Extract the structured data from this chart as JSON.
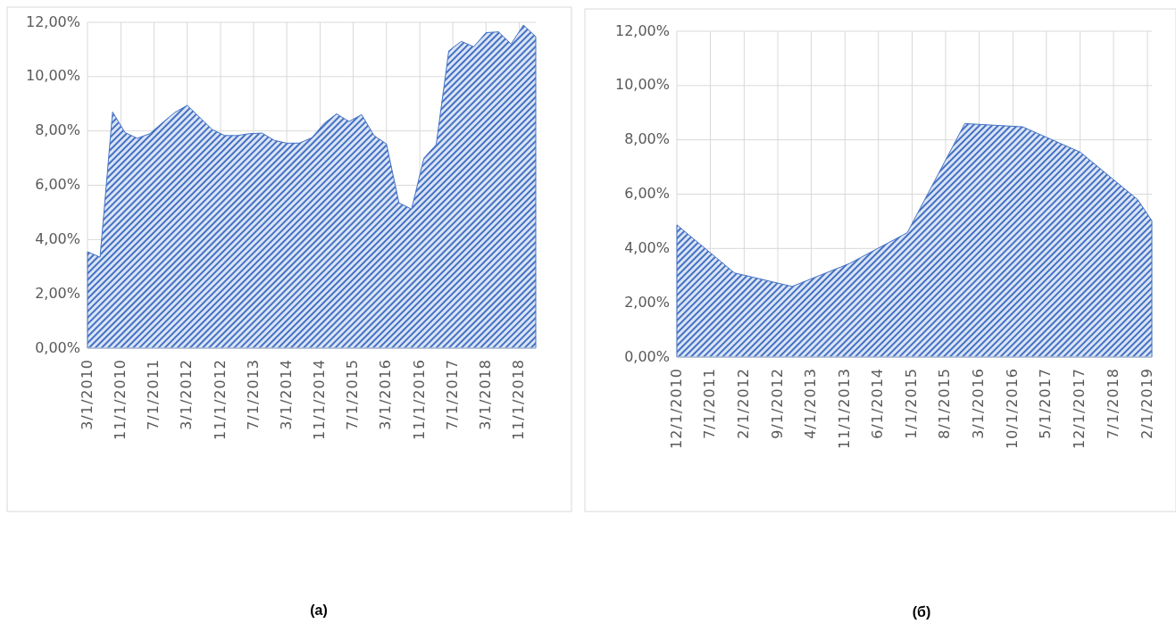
{
  "chart_data": [
    {
      "type": "area",
      "annotations": [
        "(a)"
      ],
      "grid": true,
      "x": [
        "2010-03",
        "2010-06",
        "2010-09",
        "2010-12",
        "2011-03",
        "2011-06",
        "2011-09",
        "2011-12",
        "2012-03",
        "2012-06",
        "2012-09",
        "2012-12",
        "2013-03",
        "2013-06",
        "2013-09",
        "2013-12",
        "2014-03",
        "2014-06",
        "2014-09",
        "2014-12",
        "2015-03",
        "2015-06",
        "2015-09",
        "2015-12",
        "2016-03",
        "2016-06",
        "2016-09",
        "2016-12",
        "2017-03",
        "2017-06",
        "2017-09",
        "2017-12",
        "2018-03",
        "2018-06",
        "2018-09",
        "2018-12",
        "2019-03"
      ],
      "series": [
        {
          "color": "#4472c4",
          "values": [
            3.55,
            3.35,
            8.7,
            7.94,
            7.73,
            7.9,
            8.3,
            8.68,
            8.94,
            8.5,
            8.05,
            7.83,
            7.83,
            7.9,
            7.92,
            7.65,
            7.55,
            7.55,
            7.75,
            8.28,
            8.63,
            8.35,
            8.6,
            7.83,
            7.52,
            5.35,
            5.12,
            7.0,
            7.5,
            10.95,
            11.3,
            11.1,
            11.62,
            11.65,
            11.2,
            11.9,
            11.47
          ]
        }
      ],
      "xlim": [
        "2010-03",
        "2019-03"
      ],
      "xticks": [
        {
          "value": "2010-03",
          "label": "3/1/2010"
        },
        {
          "value": "2010-11",
          "label": "11/1/2010"
        },
        {
          "value": "2011-07",
          "label": "7/1/2011"
        },
        {
          "value": "2012-03",
          "label": "3/1/2012"
        },
        {
          "value": "2012-11",
          "label": "11/1/2012"
        },
        {
          "value": "2013-07",
          "label": "7/1/2013"
        },
        {
          "value": "2014-03",
          "label": "3/1/2014"
        },
        {
          "value": "2014-11",
          "label": "11/1/2014"
        },
        {
          "value": "2015-07",
          "label": "7/1/2015"
        },
        {
          "value": "2016-03",
          "label": "3/1/2016"
        },
        {
          "value": "2016-11",
          "label": "11/1/2016"
        },
        {
          "value": "2017-07",
          "label": "7/1/2017"
        },
        {
          "value": "2018-03",
          "label": "3/1/2018"
        },
        {
          "value": "2018-11",
          "label": "11/1/2018"
        }
      ],
      "ylim": [
        0,
        12
      ],
      "yticks": [
        {
          "value": 0,
          "label": "0,00%"
        },
        {
          "value": 2,
          "label": "2,00%"
        },
        {
          "value": 4,
          "label": "4,00%"
        },
        {
          "value": 6,
          "label": "6,00%"
        },
        {
          "value": 8,
          "label": "8,00%"
        },
        {
          "value": 10,
          "label": "10,00%"
        },
        {
          "value": 12,
          "label": "12,00%"
        }
      ]
    },
    {
      "type": "area",
      "annotations": [
        "(б)"
      ],
      "grid": true,
      "x": [
        "2010-12",
        "2011-12",
        "2012-12",
        "2013-12",
        "2014-12",
        "2015-12",
        "2016-12",
        "2017-12",
        "2018-12",
        "2019-03"
      ],
      "series": [
        {
          "color": "#4472c4",
          "values": [
            4.87,
            3.1,
            2.6,
            3.45,
            4.58,
            8.6,
            8.48,
            7.55,
            5.8,
            5.02
          ]
        }
      ],
      "xlim": [
        "2010-12",
        "2019-03"
      ],
      "xticks": [
        {
          "value": "2010-12",
          "label": "12/1/2010"
        },
        {
          "value": "2011-07",
          "label": "7/1/2011"
        },
        {
          "value": "2012-02",
          "label": "2/1/2012"
        },
        {
          "value": "2012-09",
          "label": "9/1/2012"
        },
        {
          "value": "2013-04",
          "label": "4/1/2013"
        },
        {
          "value": "2013-11",
          "label": "11/1/2013"
        },
        {
          "value": "2014-06",
          "label": "6/1/2014"
        },
        {
          "value": "2015-01",
          "label": "1/1/2015"
        },
        {
          "value": "2015-08",
          "label": "8/1/2015"
        },
        {
          "value": "2016-03",
          "label": "3/1/2016"
        },
        {
          "value": "2016-10",
          "label": "10/1/2016"
        },
        {
          "value": "2017-05",
          "label": "5/1/2017"
        },
        {
          "value": "2017-12",
          "label": "12/1/2017"
        },
        {
          "value": "2018-07",
          "label": "7/1/2018"
        },
        {
          "value": "2019-02",
          "label": "2/1/2019"
        }
      ],
      "ylim": [
        0,
        12
      ],
      "yticks": [
        {
          "value": 0,
          "label": "0,00%"
        },
        {
          "value": 2,
          "label": "2,00%"
        },
        {
          "value": 4,
          "label": "4,00%"
        },
        {
          "value": 6,
          "label": "6,00%"
        },
        {
          "value": 8,
          "label": "8,00%"
        },
        {
          "value": 10,
          "label": "10,00%"
        },
        {
          "value": 12,
          "label": "12,00%"
        }
      ]
    }
  ]
}
